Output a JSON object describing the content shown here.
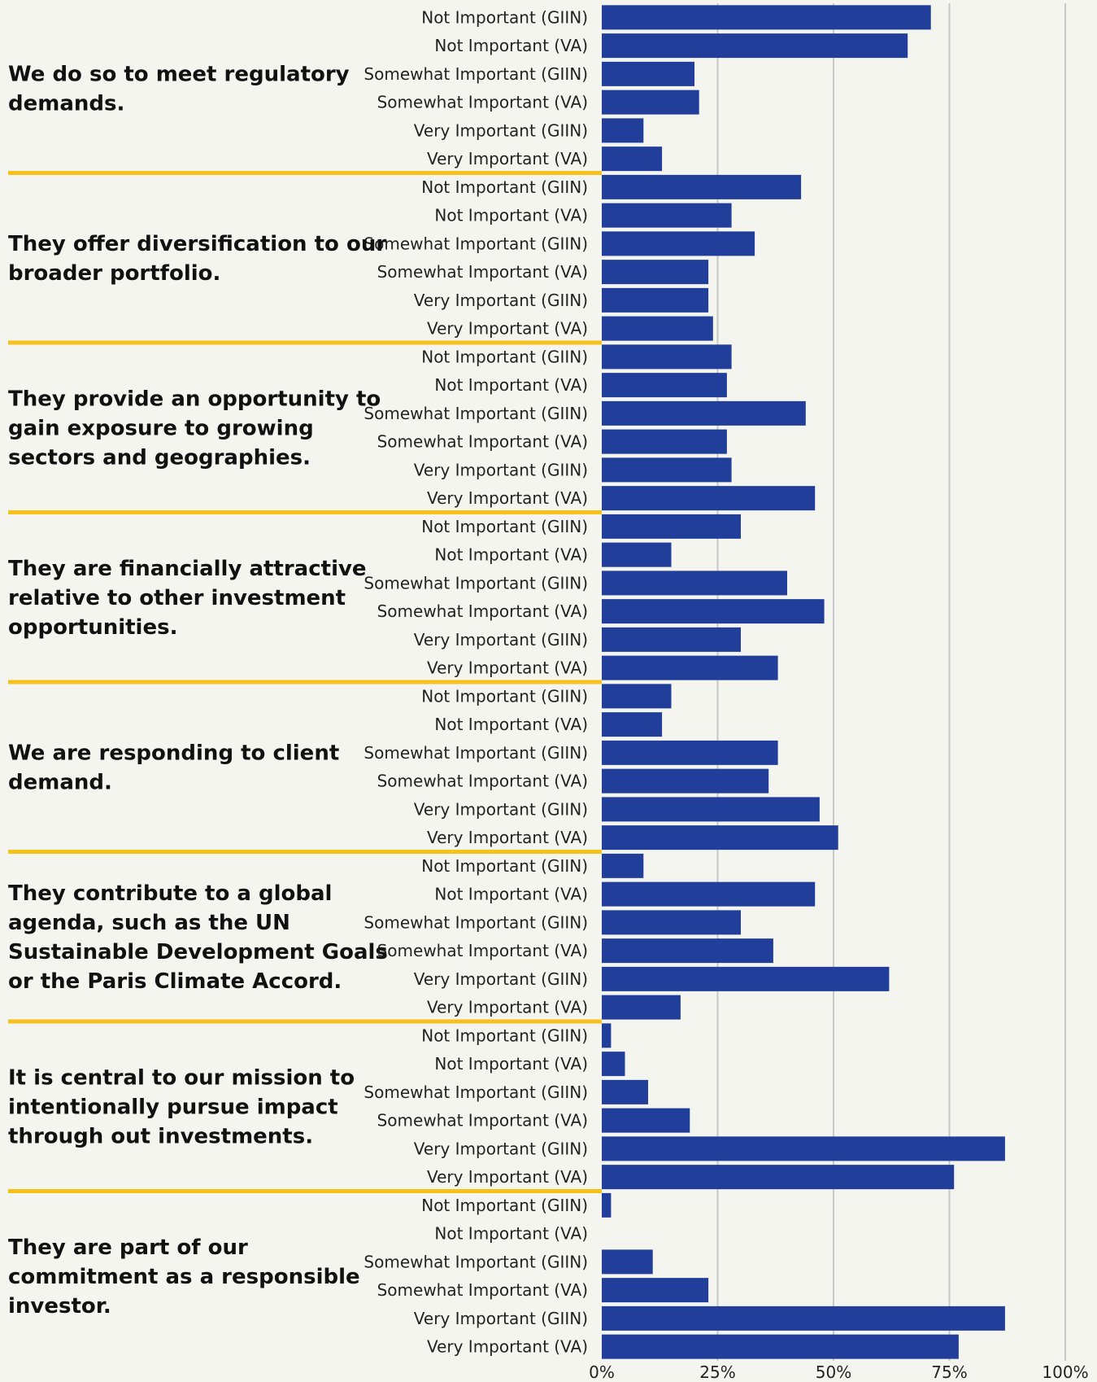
{
  "chart_data": {
    "type": "bar",
    "orientation": "horizontal",
    "title": "",
    "xlabel": "",
    "ylabel": "",
    "xlim": [
      0,
      100
    ],
    "x_ticks": [
      "0%",
      "25%",
      "50%",
      "75%",
      "100%"
    ],
    "grid": true,
    "bar_color": "#213f9a",
    "separator_color": "#f6c11b",
    "gridline_color": "#c8c8c8",
    "background_color": "#f5f5f0",
    "categories": [
      "Not Important (GIIN)",
      "Not Important (VA)",
      "Somewhat Important (GIIN)",
      "Somewhat Important (VA)",
      "Very Important (GIIN)",
      "Very Important (VA)"
    ],
    "groups": [
      {
        "label": [
          "We do so to meet regulatory",
          "demands."
        ],
        "values": [
          71,
          66,
          20,
          21,
          9,
          13
        ]
      },
      {
        "label": [
          "They offer diversification to our",
          "broader portfolio."
        ],
        "values": [
          43,
          28,
          33,
          23,
          23,
          24
        ]
      },
      {
        "label": [
          "They provide an opportunity to",
          "gain exposure to growing",
          "sectors and geographies."
        ],
        "values": [
          28,
          27,
          44,
          27,
          28,
          46
        ]
      },
      {
        "label": [
          "They are financially attractive",
          "relative to other investment",
          "opportunities."
        ],
        "values": [
          30,
          15,
          40,
          48,
          30,
          38
        ]
      },
      {
        "label": [
          "We are responding to client",
          "demand."
        ],
        "values": [
          15,
          13,
          38,
          36,
          47,
          51
        ]
      },
      {
        "label": [
          "They contribute to a global",
          "agenda, such as the UN",
          "Sustainable Development Goals",
          "or the Paris Climate Accord."
        ],
        "values": [
          9,
          46,
          30,
          37,
          62,
          17
        ]
      },
      {
        "label": [
          "It is central to our mission to",
          "intentionally pursue impact",
          "through out investments."
        ],
        "values": [
          2,
          5,
          10,
          19,
          87,
          76
        ]
      },
      {
        "label": [
          "They are part of our",
          "commitment as a responsible",
          "investor."
        ],
        "values": [
          2,
          0,
          11,
          23,
          87,
          77
        ]
      }
    ]
  }
}
